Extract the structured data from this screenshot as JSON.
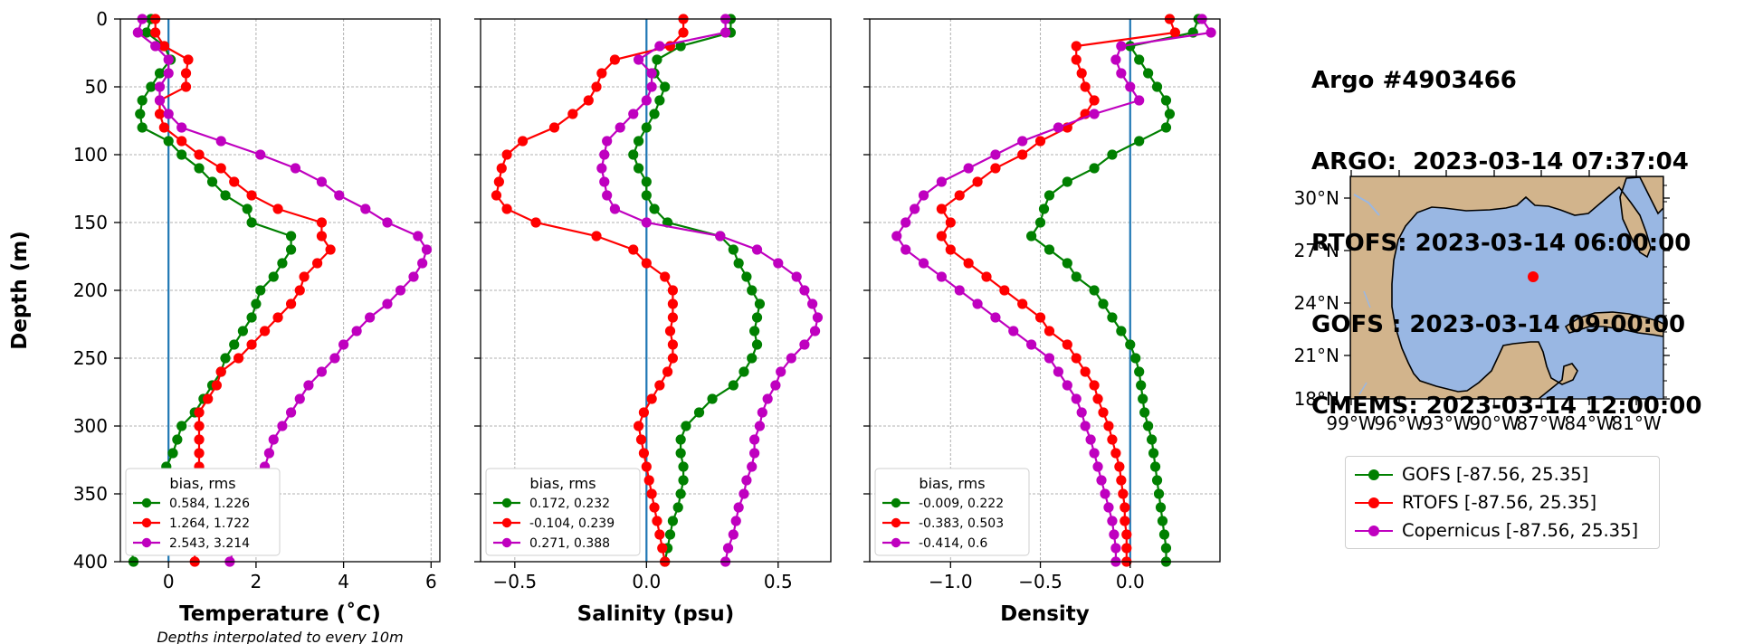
{
  "titles": [
    "Argo #4903466",
    "ARGO:  2023-03-14 07:37:04",
    "RTOFS: 2023-03-14 06:00:00",
    "GOFS : 2023-03-14 09:00:00",
    "CMEMS: 2023-03-14 12:00:00"
  ],
  "colors": {
    "gofs": "#008000",
    "rtofs": "#ff0000",
    "copernicus": "#bf00bf",
    "zero_line": "#1f77b4",
    "land": "#d2b48c",
    "ocean": "#99b7e3",
    "argo_marker": "#ff0000"
  },
  "legend": {
    "entries": [
      {
        "label": "GOFS [-87.56, 25.35]",
        "color_key": "gofs"
      },
      {
        "label": "RTOFS [-87.56, 25.35]",
        "color_key": "rtofs"
      },
      {
        "label": "Copernicus [-87.56, 25.35]",
        "color_key": "copernicus"
      }
    ]
  },
  "footnote": "Depths interpolated to every 10m",
  "map": {
    "lat_labels": [
      "30°N",
      "27°N",
      "24°N",
      "21°N",
      "18°N"
    ],
    "lon_labels": [
      "99°W",
      "96°W",
      "93°W",
      "90°W",
      "87°W",
      "84°W",
      "81°W"
    ],
    "argo_position": {
      "lon": -87.56,
      "lat": 25.35
    }
  },
  "chart_data": [
    {
      "type": "line",
      "xlabel": "Temperature (˚C)",
      "ylabel": "Depth (m)",
      "xlim": [
        -1.1,
        6.2
      ],
      "ylim": [
        400,
        0
      ],
      "xticks": [
        0,
        2,
        4,
        6
      ],
      "yticks": [
        0,
        50,
        100,
        150,
        200,
        250,
        300,
        350,
        400
      ],
      "grid": true,
      "legend_title": "bias, rms",
      "legend_position": "bottom-left",
      "legend_entries": [
        "0.584, 1.226",
        "1.264, 1.722",
        "2.543, 3.214"
      ],
      "depths": [
        0,
        10,
        20,
        30,
        40,
        50,
        60,
        70,
        80,
        90,
        100,
        110,
        120,
        130,
        140,
        150,
        160,
        170,
        180,
        190,
        200,
        210,
        220,
        230,
        240,
        250,
        260,
        270,
        280,
        290,
        300,
        310,
        320,
        330,
        340,
        350,
        360,
        370,
        380,
        390,
        400
      ],
      "series": [
        {
          "name": "GOFS",
          "color_key": "gofs",
          "values": [
            -0.4,
            -0.5,
            -0.1,
            0.05,
            -0.2,
            -0.4,
            -0.6,
            -0.65,
            -0.6,
            0.0,
            0.3,
            0.7,
            1.0,
            1.3,
            1.8,
            1.9,
            2.8,
            2.8,
            2.6,
            2.4,
            2.1,
            2.0,
            1.9,
            1.7,
            1.5,
            1.3,
            1.2,
            1.0,
            0.8,
            0.6,
            0.3,
            0.2,
            0.1,
            -0.05,
            -0.3,
            -0.5,
            -0.6,
            -0.7,
            -0.8,
            -0.85,
            -0.8
          ]
        },
        {
          "name": "RTOFS",
          "color_key": "rtofs",
          "values": [
            -0.3,
            -0.3,
            -0.1,
            0.45,
            0.4,
            0.4,
            -0.2,
            -0.2,
            -0.1,
            0.3,
            0.7,
            1.2,
            1.5,
            1.9,
            2.5,
            3.5,
            3.5,
            3.7,
            3.4,
            3.1,
            3.0,
            2.8,
            2.5,
            2.2,
            1.9,
            1.6,
            1.2,
            1.1,
            0.9,
            0.7,
            0.7,
            0.7,
            0.7,
            0.7,
            0.7,
            0.7,
            0.6,
            0.6,
            0.6,
            0.6,
            0.6
          ]
        },
        {
          "name": "Copernicus",
          "color_key": "copernicus",
          "values": [
            -0.6,
            -0.7,
            -0.3,
            0.0,
            0.0,
            -0.2,
            -0.2,
            0.0,
            0.3,
            1.2,
            2.1,
            2.9,
            3.5,
            3.9,
            4.5,
            5.0,
            5.7,
            5.9,
            5.8,
            5.6,
            5.3,
            5.0,
            4.6,
            4.3,
            4.0,
            3.8,
            3.5,
            3.2,
            3.0,
            2.8,
            2.6,
            2.4,
            2.3,
            2.2,
            2.0,
            1.9,
            1.8,
            1.7,
            1.6,
            1.5,
            1.4
          ]
        }
      ]
    },
    {
      "type": "line",
      "xlabel": "Salinity (psu)",
      "xlim": [
        -0.63,
        0.7
      ],
      "ylim": [
        400,
        0
      ],
      "xticks": [
        -0.5,
        0.0,
        0.5
      ],
      "grid": true,
      "legend_title": "bias, rms",
      "legend_position": "bottom-left",
      "legend_entries": [
        "0.172, 0.232",
        "-0.104, 0.239",
        "0.271, 0.388"
      ],
      "depths": [
        0,
        10,
        20,
        30,
        40,
        50,
        60,
        70,
        80,
        90,
        100,
        110,
        120,
        130,
        140,
        150,
        160,
        170,
        180,
        190,
        200,
        210,
        220,
        230,
        240,
        250,
        260,
        270,
        280,
        290,
        300,
        310,
        320,
        330,
        340,
        350,
        360,
        370,
        380,
        390,
        400
      ],
      "series": [
        {
          "name": "GOFS",
          "color_key": "gofs",
          "values": [
            0.32,
            0.32,
            0.13,
            0.04,
            0.03,
            0.07,
            0.05,
            0.03,
            0.0,
            -0.03,
            -0.05,
            -0.03,
            0.0,
            0.0,
            0.03,
            0.08,
            0.28,
            0.33,
            0.35,
            0.38,
            0.4,
            0.43,
            0.42,
            0.41,
            0.42,
            0.4,
            0.37,
            0.33,
            0.25,
            0.2,
            0.15,
            0.13,
            0.13,
            0.14,
            0.14,
            0.13,
            0.12,
            0.1,
            0.09,
            0.08,
            0.07
          ]
        },
        {
          "name": "RTOFS",
          "color_key": "rtofs",
          "values": [
            0.14,
            0.14,
            0.09,
            -0.12,
            -0.17,
            -0.19,
            -0.22,
            -0.28,
            -0.35,
            -0.47,
            -0.53,
            -0.55,
            -0.56,
            -0.57,
            -0.53,
            -0.42,
            -0.19,
            -0.05,
            0.0,
            0.07,
            0.1,
            0.1,
            0.1,
            0.09,
            0.1,
            0.1,
            0.08,
            0.05,
            0.02,
            -0.01,
            -0.03,
            -0.02,
            -0.01,
            0.0,
            0.01,
            0.02,
            0.03,
            0.04,
            0.05,
            0.06,
            0.07
          ]
        },
        {
          "name": "Copernicus",
          "color_key": "copernicus",
          "values": [
            0.3,
            0.3,
            0.05,
            -0.03,
            0.02,
            0.02,
            0.0,
            -0.05,
            -0.1,
            -0.15,
            -0.16,
            -0.17,
            -0.16,
            -0.15,
            -0.12,
            0.0,
            0.28,
            0.42,
            0.5,
            0.57,
            0.6,
            0.63,
            0.65,
            0.64,
            0.6,
            0.55,
            0.51,
            0.49,
            0.46,
            0.44,
            0.43,
            0.41,
            0.41,
            0.4,
            0.38,
            0.37,
            0.35,
            0.34,
            0.33,
            0.31,
            0.3
          ]
        }
      ]
    },
    {
      "type": "line",
      "xlabel": "Density",
      "xlim": [
        -1.45,
        0.5
      ],
      "ylim": [
        400,
        0
      ],
      "xticks": [
        -1.0,
        -0.5,
        0.0
      ],
      "grid": true,
      "legend_title": "bias, rms",
      "legend_position": "bottom-left",
      "legend_entries": [
        "-0.009, 0.222",
        "-0.383, 0.503",
        "-0.414, 0.6"
      ],
      "depths": [
        0,
        10,
        20,
        30,
        40,
        50,
        60,
        70,
        80,
        90,
        100,
        110,
        120,
        130,
        140,
        150,
        160,
        170,
        180,
        190,
        200,
        210,
        220,
        230,
        240,
        250,
        260,
        270,
        280,
        290,
        300,
        310,
        320,
        330,
        340,
        350,
        360,
        370,
        380,
        390,
        400
      ],
      "series": [
        {
          "name": "GOFS",
          "color_key": "gofs",
          "values": [
            0.38,
            0.35,
            0.0,
            0.05,
            0.1,
            0.15,
            0.2,
            0.22,
            0.2,
            0.05,
            -0.1,
            -0.2,
            -0.35,
            -0.45,
            -0.48,
            -0.5,
            -0.55,
            -0.45,
            -0.35,
            -0.3,
            -0.2,
            -0.15,
            -0.1,
            -0.05,
            0.0,
            0.03,
            0.05,
            0.06,
            0.07,
            0.08,
            0.1,
            0.12,
            0.13,
            0.14,
            0.15,
            0.16,
            0.17,
            0.18,
            0.19,
            0.2,
            0.2
          ]
        },
        {
          "name": "RTOFS",
          "color_key": "rtofs",
          "values": [
            0.22,
            0.25,
            -0.3,
            -0.3,
            -0.27,
            -0.25,
            -0.2,
            -0.25,
            -0.35,
            -0.5,
            -0.6,
            -0.75,
            -0.85,
            -0.95,
            -1.05,
            -1.0,
            -1.05,
            -1.0,
            -0.9,
            -0.8,
            -0.7,
            -0.6,
            -0.5,
            -0.45,
            -0.35,
            -0.3,
            -0.25,
            -0.2,
            -0.18,
            -0.15,
            -0.12,
            -0.1,
            -0.08,
            -0.06,
            -0.05,
            -0.04,
            -0.03,
            -0.03,
            -0.02,
            -0.02,
            -0.02
          ]
        },
        {
          "name": "Copernicus",
          "color_key": "copernicus",
          "values": [
            0.4,
            0.45,
            -0.05,
            -0.08,
            -0.05,
            0.0,
            0.05,
            -0.2,
            -0.4,
            -0.6,
            -0.75,
            -0.9,
            -1.05,
            -1.15,
            -1.2,
            -1.25,
            -1.3,
            -1.25,
            -1.15,
            -1.05,
            -0.95,
            -0.85,
            -0.75,
            -0.65,
            -0.55,
            -0.45,
            -0.4,
            -0.35,
            -0.3,
            -0.27,
            -0.25,
            -0.22,
            -0.2,
            -0.18,
            -0.16,
            -0.14,
            -0.12,
            -0.1,
            -0.09,
            -0.08,
            -0.08
          ]
        }
      ]
    }
  ]
}
